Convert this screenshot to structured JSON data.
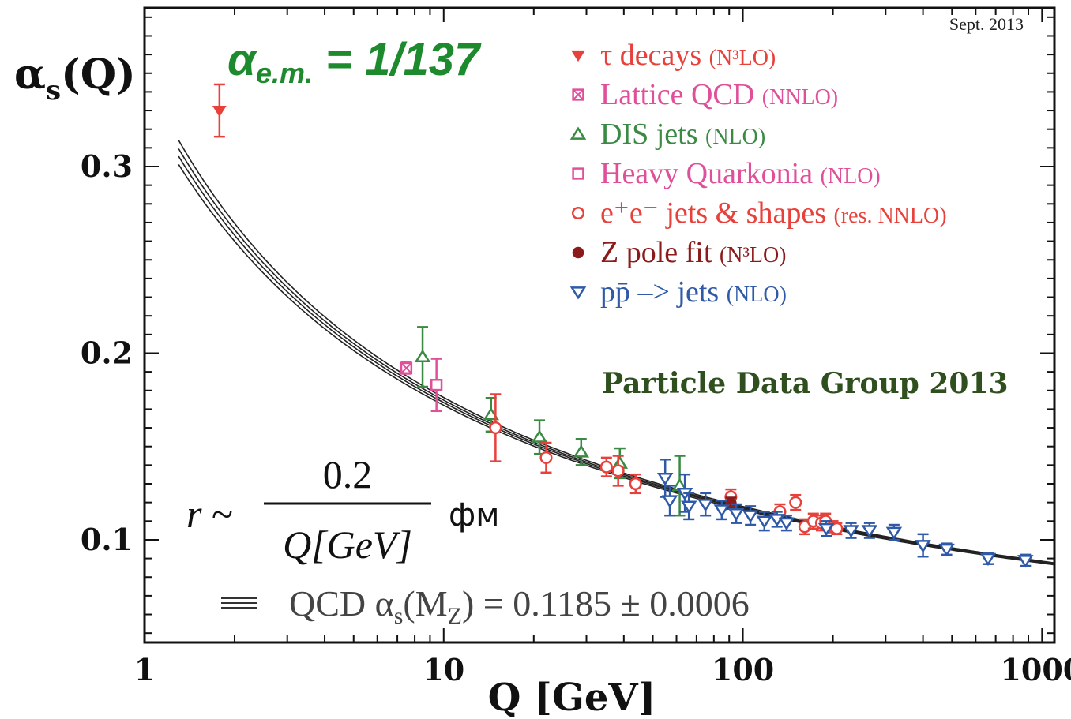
{
  "chart_data": {
    "type": "scatter",
    "title": "",
    "date_note": "Sept. 2013",
    "xlabel": "Q [GeV]",
    "ylabel": "αs(Q)",
    "xscale": "log",
    "xlim": [
      1,
      1100
    ],
    "ylim": [
      0.045,
      0.385
    ],
    "x_ticks": [
      1,
      10,
      100,
      1000
    ],
    "x_tick_labels": [
      "1",
      "10",
      "100",
      "1000"
    ],
    "y_ticks": [
      0.1,
      0.2,
      0.3
    ],
    "y_tick_labels": [
      "0.1",
      "0.2",
      "0.3"
    ],
    "legend_position": "top-right",
    "annotations": {
      "alpha_em": {
        "symbol": "α",
        "subscript": "e.m.",
        "text": " = 1/137"
      },
      "pdg_label": "Particle Data Group 2013",
      "formula": {
        "lhs": "r ~",
        "numerator": "0.2",
        "denominator": "Q[GeV]",
        "unit": "фм"
      },
      "qcd_band_label": "QCD αs(Mz) = 0.1185 ± 0.0006"
    },
    "curve": {
      "alpha_mz": 0.1185,
      "uncertainty": 0.0006,
      "mz": 91.19
    },
    "series": [
      {
        "name": "τ decays",
        "order": "(N³LO)",
        "marker": "filled-down-triangle",
        "color": "#e8403a",
        "points": [
          {
            "x": 1.78,
            "y": 0.33,
            "err": 0.014
          }
        ]
      },
      {
        "name": "Lattice QCD",
        "order": "(NNLO)",
        "marker": "crossed-square",
        "color": "#e0509a",
        "points": [
          {
            "x": 7.5,
            "y": 0.192,
            "err": 0.003
          }
        ]
      },
      {
        "name": "DIS jets",
        "order": "(NLO)",
        "marker": "open-up-triangle",
        "color": "#3a8a44",
        "points": [
          {
            "x": 8.5,
            "y": 0.198,
            "err": 0.016
          },
          {
            "x": 14.4,
            "y": 0.167,
            "err": 0.009
          },
          {
            "x": 20.9,
            "y": 0.155,
            "err": 0.009
          },
          {
            "x": 28.8,
            "y": 0.147,
            "err": 0.007
          },
          {
            "x": 38.8,
            "y": 0.141,
            "err": 0.008
          },
          {
            "x": 61.5,
            "y": 0.129,
            "err": 0.016
          }
        ]
      },
      {
        "name": "Heavy Quarkonia",
        "order": "(NLO)",
        "marker": "open-square",
        "color": "#e0509a",
        "points": [
          {
            "x": 9.46,
            "y": 0.183,
            "err": 0.014
          }
        ]
      },
      {
        "name": "e⁺e⁻ jets & shapes",
        "order": "(res. NNLO)",
        "marker": "open-circle",
        "color": "#e8403a",
        "points": [
          {
            "x": 14.9,
            "y": 0.16,
            "err": 0.018
          },
          {
            "x": 22.0,
            "y": 0.144,
            "err": 0.008
          },
          {
            "x": 35.0,
            "y": 0.139,
            "err": 0.005
          },
          {
            "x": 38.3,
            "y": 0.137,
            "err": 0.008
          },
          {
            "x": 43.8,
            "y": 0.13,
            "err": 0.005
          },
          {
            "x": 91.2,
            "y": 0.123,
            "err": 0.004
          },
          {
            "x": 133,
            "y": 0.115,
            "err": 0.004
          },
          {
            "x": 161,
            "y": 0.107,
            "err": 0.004
          },
          {
            "x": 172,
            "y": 0.11,
            "err": 0.004
          },
          {
            "x": 183,
            "y": 0.109,
            "err": 0.004
          },
          {
            "x": 189,
            "y": 0.11,
            "err": 0.004
          },
          {
            "x": 200,
            "y": 0.107,
            "err": 0.003
          },
          {
            "x": 206,
            "y": 0.106,
            "err": 0.003
          },
          {
            "x": 150,
            "y": 0.12,
            "err": 0.004
          }
        ]
      },
      {
        "name": "Z pole fit",
        "order": "(N³LO)",
        "marker": "filled-circle",
        "color": "#8b1a1a",
        "points": [
          {
            "x": 91.2,
            "y": 0.1196,
            "err": 0.003
          }
        ]
      },
      {
        "name": "pp̄ –> jets",
        "order": "(NLO)",
        "marker": "open-down-triangle",
        "color": "#2f5aa8",
        "points": [
          {
            "x": 55,
            "y": 0.133,
            "err": 0.01
          },
          {
            "x": 57,
            "y": 0.121,
            "err": 0.008
          },
          {
            "x": 64,
            "y": 0.125,
            "err": 0.01
          },
          {
            "x": 66,
            "y": 0.118,
            "err": 0.007
          },
          {
            "x": 75,
            "y": 0.119,
            "err": 0.006
          },
          {
            "x": 85,
            "y": 0.116,
            "err": 0.005
          },
          {
            "x": 95,
            "y": 0.114,
            "err": 0.005
          },
          {
            "x": 106,
            "y": 0.113,
            "err": 0.005
          },
          {
            "x": 118,
            "y": 0.11,
            "err": 0.005
          },
          {
            "x": 130,
            "y": 0.111,
            "err": 0.004
          },
          {
            "x": 140,
            "y": 0.109,
            "err": 0.004
          },
          {
            "x": 190,
            "y": 0.106,
            "err": 0.004
          },
          {
            "x": 230,
            "y": 0.105,
            "err": 0.004
          },
          {
            "x": 265,
            "y": 0.105,
            "err": 0.004
          },
          {
            "x": 320,
            "y": 0.104,
            "err": 0.004
          },
          {
            "x": 400,
            "y": 0.097,
            "err": 0.006
          },
          {
            "x": 480,
            "y": 0.095,
            "err": 0.003
          },
          {
            "x": 660,
            "y": 0.09,
            "err": 0.003
          },
          {
            "x": 880,
            "y": 0.089,
            "err": 0.003
          }
        ]
      }
    ]
  }
}
